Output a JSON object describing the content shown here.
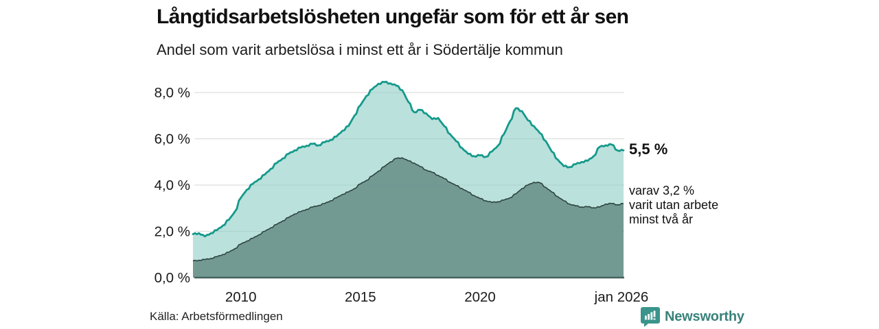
{
  "header": {
    "title": "Långtidsarbetslösheten ungefär som för ett år sen",
    "subtitle": "Andel som varit arbetslösa i minst ett år i Södertälje kommun"
  },
  "annotations": {
    "total_end_label": "5,5 %",
    "varav_lines": [
      "varav 3,2 %",
      "varit utan arbete",
      "minst två år"
    ]
  },
  "footer": {
    "source": "Källa: Arbetsförmedlingen",
    "brand": "Newsworthy",
    "brand_icon": "bar-chart-speech-bubble-icon"
  },
  "colors": {
    "total_line": "#14998b",
    "total_fill": "#8ccdc3",
    "total_fill_opacity": 0.6,
    "two_year_fill": "#6f958f",
    "two_year_fill_opacity": 0.95,
    "two_year_line": "#2c4440",
    "gridline": "#dedede",
    "axis_line": "#44635d",
    "tick_text": "#1a1a1a",
    "brand_teal": "#3a948c"
  },
  "chart_data": {
    "type": "area",
    "title": "Långtidsarbetslösheten ungefär som för ett år sen",
    "subtitle": "Andel som varit arbetslösa i minst ett år i Södertälje kommun",
    "unit": "%",
    "x_domain": [
      2008,
      2026
    ],
    "ylim": [
      0,
      8.8
    ],
    "grid": true,
    "legend_position": "end-labels-right",
    "yticks": [
      {
        "v": 0,
        "label": "0,0 %"
      },
      {
        "v": 2,
        "label": "2,0 %"
      },
      {
        "v": 4,
        "label": "4,0 %"
      },
      {
        "v": 6,
        "label": "6,0 %"
      },
      {
        "v": 8,
        "label": "8,0 %"
      }
    ],
    "xticks": [
      {
        "t": 2010,
        "label": "2010"
      },
      {
        "t": 2015,
        "label": "2015"
      },
      {
        "t": 2020,
        "label": "2020"
      },
      {
        "t": 2026,
        "label": "jan 2026"
      }
    ],
    "series": [
      {
        "name": "arbetslösa minst ett år (totalt)",
        "end_label": "5,5 %",
        "end_value": 5.5,
        "points": [
          [
            2008.0,
            1.88
          ],
          [
            2008.25,
            1.92
          ],
          [
            2008.5,
            1.78
          ],
          [
            2008.75,
            1.92
          ],
          [
            2009.0,
            2.05
          ],
          [
            2009.25,
            2.25
          ],
          [
            2009.5,
            2.5
          ],
          [
            2009.75,
            2.85
          ],
          [
            2010.0,
            3.45
          ],
          [
            2010.25,
            3.8
          ],
          [
            2010.5,
            4.05
          ],
          [
            2010.75,
            4.25
          ],
          [
            2011.0,
            4.45
          ],
          [
            2011.25,
            4.7
          ],
          [
            2011.5,
            4.95
          ],
          [
            2011.75,
            5.15
          ],
          [
            2012.0,
            5.35
          ],
          [
            2012.25,
            5.5
          ],
          [
            2012.5,
            5.62
          ],
          [
            2012.75,
            5.7
          ],
          [
            2013.0,
            5.78
          ],
          [
            2013.25,
            5.72
          ],
          [
            2013.5,
            5.85
          ],
          [
            2013.75,
            5.95
          ],
          [
            2014.0,
            6.1
          ],
          [
            2014.25,
            6.35
          ],
          [
            2014.5,
            6.55
          ],
          [
            2014.75,
            7.0
          ],
          [
            2015.0,
            7.45
          ],
          [
            2015.25,
            7.85
          ],
          [
            2015.5,
            8.15
          ],
          [
            2015.75,
            8.38
          ],
          [
            2016.0,
            8.45
          ],
          [
            2016.25,
            8.4
          ],
          [
            2016.5,
            8.3
          ],
          [
            2016.75,
            8.1
          ],
          [
            2017.0,
            7.6
          ],
          [
            2017.25,
            7.15
          ],
          [
            2017.5,
            7.25
          ],
          [
            2017.75,
            7.1
          ],
          [
            2018.0,
            6.85
          ],
          [
            2018.25,
            6.9
          ],
          [
            2018.5,
            6.55
          ],
          [
            2018.75,
            6.2
          ],
          [
            2019.0,
            5.9
          ],
          [
            2019.25,
            5.6
          ],
          [
            2019.5,
            5.35
          ],
          [
            2019.75,
            5.25
          ],
          [
            2020.0,
            5.28
          ],
          [
            2020.25,
            5.22
          ],
          [
            2020.5,
            5.45
          ],
          [
            2020.75,
            5.7
          ],
          [
            2021.0,
            6.2
          ],
          [
            2021.25,
            6.75
          ],
          [
            2021.5,
            7.32
          ],
          [
            2021.75,
            7.2
          ],
          [
            2022.0,
            6.8
          ],
          [
            2022.25,
            6.55
          ],
          [
            2022.5,
            6.25
          ],
          [
            2022.75,
            5.9
          ],
          [
            2023.0,
            5.45
          ],
          [
            2023.25,
            5.1
          ],
          [
            2023.5,
            4.82
          ],
          [
            2023.75,
            4.78
          ],
          [
            2024.0,
            4.9
          ],
          [
            2024.25,
            5.0
          ],
          [
            2024.5,
            5.05
          ],
          [
            2024.75,
            5.25
          ],
          [
            2025.0,
            5.65
          ],
          [
            2025.25,
            5.72
          ],
          [
            2025.5,
            5.75
          ],
          [
            2025.75,
            5.5
          ],
          [
            2026.0,
            5.5
          ]
        ]
      },
      {
        "name": "varav utan arbete minst två år",
        "end_label": "varav 3,2 % varit utan arbete minst två år",
        "end_value": 3.2,
        "points": [
          [
            2008.0,
            0.72
          ],
          [
            2008.25,
            0.75
          ],
          [
            2008.5,
            0.78
          ],
          [
            2008.75,
            0.83
          ],
          [
            2009.0,
            0.9
          ],
          [
            2009.25,
            1.0
          ],
          [
            2009.5,
            1.1
          ],
          [
            2009.75,
            1.25
          ],
          [
            2010.0,
            1.45
          ],
          [
            2010.25,
            1.58
          ],
          [
            2010.5,
            1.7
          ],
          [
            2010.75,
            1.85
          ],
          [
            2011.0,
            2.0
          ],
          [
            2011.25,
            2.15
          ],
          [
            2011.5,
            2.3
          ],
          [
            2011.75,
            2.45
          ],
          [
            2012.0,
            2.6
          ],
          [
            2012.25,
            2.75
          ],
          [
            2012.5,
            2.85
          ],
          [
            2012.75,
            2.95
          ],
          [
            2013.0,
            3.05
          ],
          [
            2013.25,
            3.12
          ],
          [
            2013.5,
            3.2
          ],
          [
            2013.75,
            3.32
          ],
          [
            2014.0,
            3.45
          ],
          [
            2014.25,
            3.6
          ],
          [
            2014.5,
            3.7
          ],
          [
            2014.75,
            3.85
          ],
          [
            2015.0,
            4.05
          ],
          [
            2015.25,
            4.2
          ],
          [
            2015.5,
            4.4
          ],
          [
            2015.75,
            4.6
          ],
          [
            2016.0,
            4.8
          ],
          [
            2016.25,
            5.0
          ],
          [
            2016.5,
            5.15
          ],
          [
            2016.75,
            5.18
          ],
          [
            2017.0,
            5.05
          ],
          [
            2017.25,
            4.95
          ],
          [
            2017.5,
            4.8
          ],
          [
            2017.75,
            4.65
          ],
          [
            2018.0,
            4.55
          ],
          [
            2018.25,
            4.42
          ],
          [
            2018.5,
            4.28
          ],
          [
            2018.75,
            4.12
          ],
          [
            2019.0,
            3.98
          ],
          [
            2019.25,
            3.85
          ],
          [
            2019.5,
            3.7
          ],
          [
            2019.75,
            3.55
          ],
          [
            2020.0,
            3.42
          ],
          [
            2020.25,
            3.32
          ],
          [
            2020.5,
            3.25
          ],
          [
            2020.75,
            3.28
          ],
          [
            2021.0,
            3.35
          ],
          [
            2021.25,
            3.45
          ],
          [
            2021.5,
            3.62
          ],
          [
            2021.75,
            3.85
          ],
          [
            2022.0,
            4.0
          ],
          [
            2022.25,
            4.12
          ],
          [
            2022.5,
            4.1
          ],
          [
            2022.75,
            3.9
          ],
          [
            2023.0,
            3.7
          ],
          [
            2023.25,
            3.5
          ],
          [
            2023.5,
            3.32
          ],
          [
            2023.75,
            3.18
          ],
          [
            2024.0,
            3.1
          ],
          [
            2024.25,
            3.05
          ],
          [
            2024.5,
            3.06
          ],
          [
            2024.75,
            3.02
          ],
          [
            2025.0,
            3.05
          ],
          [
            2025.25,
            3.18
          ],
          [
            2025.5,
            3.2
          ],
          [
            2025.75,
            3.15
          ],
          [
            2026.0,
            3.2
          ]
        ]
      }
    ]
  }
}
